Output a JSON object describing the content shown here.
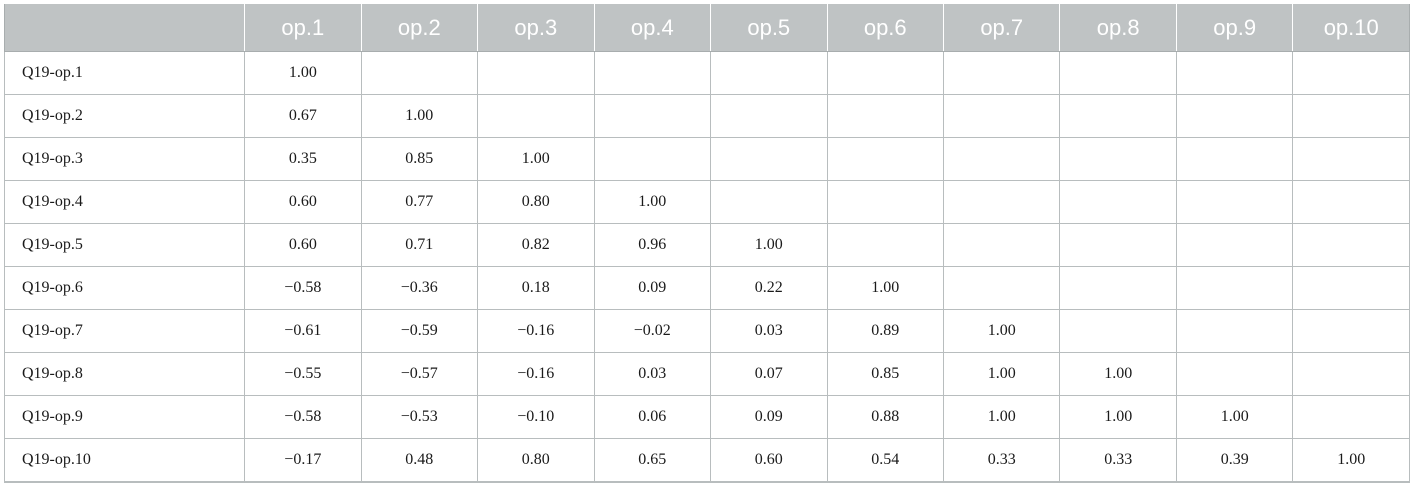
{
  "table": {
    "corner_label": "",
    "columns": [
      "op.1",
      "op.2",
      "op.3",
      "op.4",
      "op.5",
      "op.6",
      "op.7",
      "op.8",
      "op.9",
      "op.10"
    ],
    "rows": [
      {
        "label": "Q19-op.1",
        "values": [
          "1.00",
          "",
          "",
          "",
          "",
          "",
          "",
          "",
          "",
          ""
        ]
      },
      {
        "label": "Q19-op.2",
        "values": [
          "0.67",
          "1.00",
          "",
          "",
          "",
          "",
          "",
          "",
          "",
          ""
        ]
      },
      {
        "label": "Q19-op.3",
        "values": [
          "0.35",
          "0.85",
          "1.00",
          "",
          "",
          "",
          "",
          "",
          "",
          ""
        ]
      },
      {
        "label": "Q19-op.4",
        "values": [
          "0.60",
          "0.77",
          "0.80",
          "1.00",
          "",
          "",
          "",
          "",
          "",
          ""
        ]
      },
      {
        "label": "Q19-op.5",
        "values": [
          "0.60",
          "0.71",
          "0.82",
          "0.96",
          "1.00",
          "",
          "",
          "",
          "",
          ""
        ]
      },
      {
        "label": "Q19-op.6",
        "values": [
          "−0.58",
          "−0.36",
          "0.18",
          "0.09",
          "0.22",
          "1.00",
          "",
          "",
          "",
          ""
        ]
      },
      {
        "label": "Q19-op.7",
        "values": [
          "−0.61",
          "−0.59",
          "−0.16",
          "−0.02",
          "0.03",
          "0.89",
          "1.00",
          "",
          "",
          ""
        ]
      },
      {
        "label": "Q19-op.8",
        "values": [
          "−0.55",
          "−0.57",
          "−0.16",
          "0.03",
          "0.07",
          "0.85",
          "1.00",
          "1.00",
          "",
          ""
        ]
      },
      {
        "label": "Q19-op.9",
        "values": [
          "−0.58",
          "−0.53",
          "−0.10",
          "0.06",
          "0.09",
          "0.88",
          "1.00",
          "1.00",
          "1.00",
          ""
        ]
      },
      {
        "label": "Q19-op.10",
        "values": [
          "−0.17",
          "0.48",
          "0.80",
          "0.65",
          "0.60",
          "0.54",
          "0.33",
          "0.33",
          "0.39",
          "1.00"
        ]
      }
    ]
  },
  "colors": {
    "header_bg": "#bfc3c4",
    "header_text": "#ffffff",
    "grid": "#b8bdbe"
  }
}
